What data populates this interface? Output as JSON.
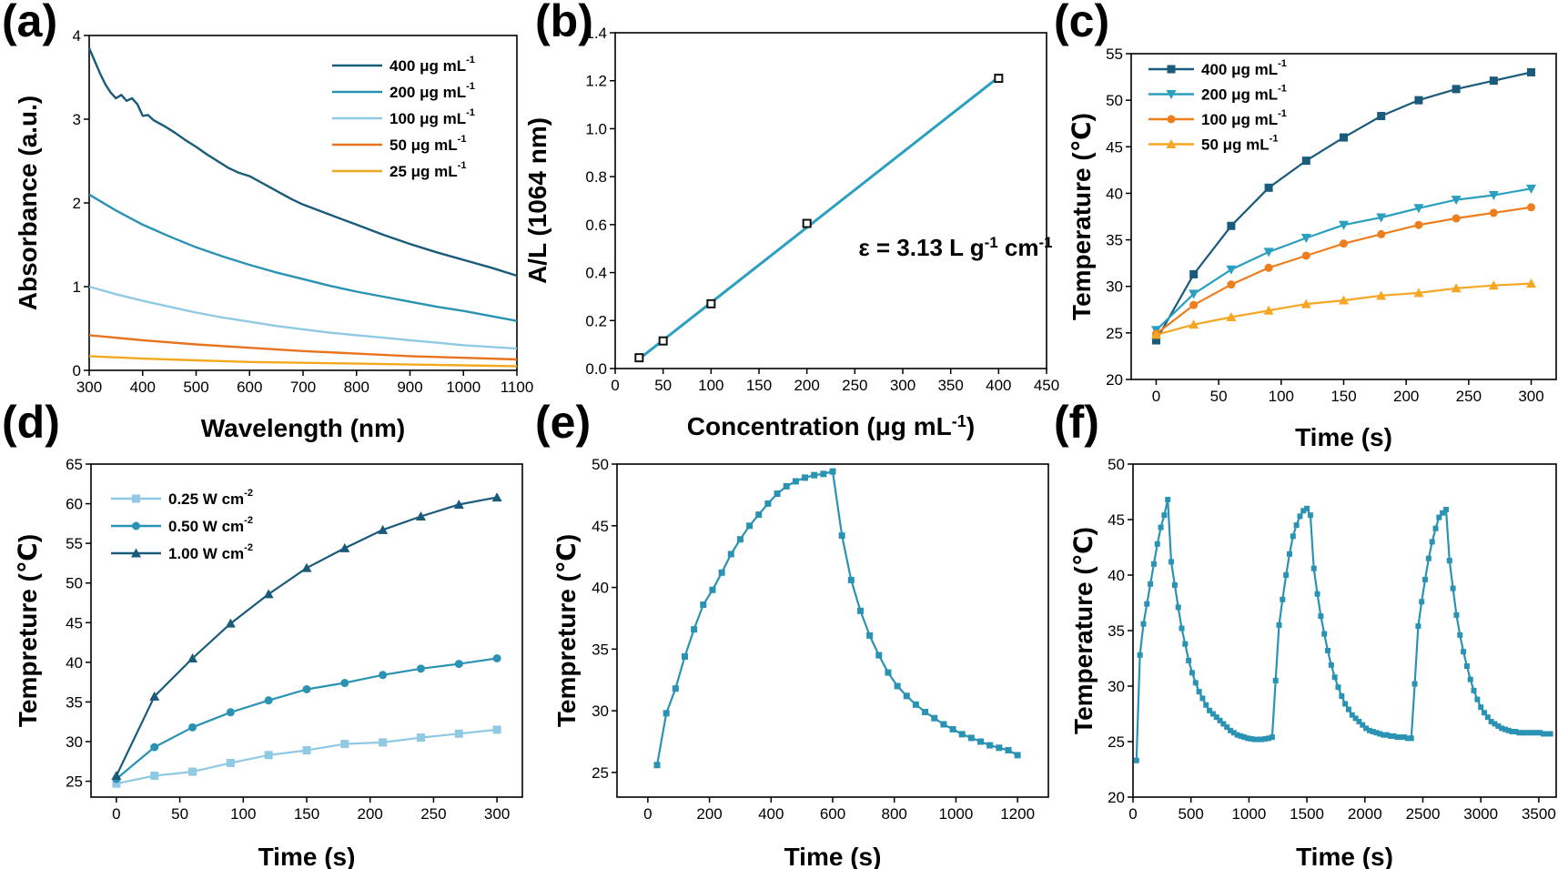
{
  "chart_data": [
    {
      "id": "a",
      "panel_label": "(a)",
      "type": "line",
      "xlabel": "Wavelength (nm)",
      "ylabel": "Absorbance (a.u.)",
      "xlim": [
        300,
        1100
      ],
      "ylim": [
        0,
        4
      ],
      "xticks": [
        300,
        400,
        500,
        600,
        700,
        800,
        900,
        1000,
        1100
      ],
      "yticks": [
        0,
        1,
        2,
        3,
        4
      ],
      "grid": false,
      "legend_position": "top-right",
      "series": [
        {
          "name": "400 μg mL-1",
          "color": "#1a5a7a",
          "x": [
            300,
            310,
            320,
            330,
            340,
            350,
            360,
            370,
            380,
            390,
            400,
            410,
            420,
            440,
            460,
            480,
            500,
            520,
            540,
            560,
            580,
            600,
            620,
            640,
            660,
            680,
            700,
            750,
            800,
            850,
            900,
            950,
            1000,
            1050,
            1100
          ],
          "y": [
            3.85,
            3.7,
            3.55,
            3.42,
            3.32,
            3.25,
            3.29,
            3.22,
            3.25,
            3.18,
            3.04,
            3.05,
            2.99,
            2.92,
            2.84,
            2.75,
            2.67,
            2.58,
            2.5,
            2.42,
            2.36,
            2.32,
            2.25,
            2.18,
            2.11,
            2.04,
            1.98,
            1.86,
            1.74,
            1.62,
            1.51,
            1.41,
            1.32,
            1.23,
            1.13
          ]
        },
        {
          "name": "200 μg mL-1",
          "color": "#2a93b3",
          "x": [
            300,
            350,
            400,
            450,
            500,
            550,
            600,
            650,
            700,
            750,
            800,
            850,
            900,
            950,
            1000,
            1050,
            1100
          ],
          "y": [
            2.1,
            1.91,
            1.74,
            1.6,
            1.47,
            1.36,
            1.26,
            1.17,
            1.09,
            1.01,
            0.94,
            0.88,
            0.82,
            0.76,
            0.71,
            0.65,
            0.59
          ]
        },
        {
          "name": "100 μg mL-1",
          "color": "#8fc9e3",
          "x": [
            300,
            350,
            400,
            450,
            500,
            550,
            600,
            650,
            700,
            750,
            800,
            850,
            900,
            950,
            1000,
            1050,
            1100
          ],
          "y": [
            1.0,
            0.91,
            0.83,
            0.76,
            0.69,
            0.63,
            0.58,
            0.53,
            0.49,
            0.45,
            0.42,
            0.39,
            0.36,
            0.33,
            0.3,
            0.28,
            0.26
          ]
        },
        {
          "name": "50 μg mL-1",
          "color": "#e8731f",
          "x": [
            300,
            400,
            500,
            600,
            700,
            800,
            900,
            1000,
            1100
          ],
          "y": [
            0.42,
            0.36,
            0.31,
            0.27,
            0.23,
            0.2,
            0.17,
            0.15,
            0.13
          ]
        },
        {
          "name": "25 μg mL-1",
          "color": "#f2a91f",
          "x": [
            300,
            400,
            500,
            600,
            700,
            800,
            900,
            1000,
            1100
          ],
          "y": [
            0.17,
            0.14,
            0.12,
            0.1,
            0.09,
            0.08,
            0.07,
            0.06,
            0.05
          ]
        }
      ]
    },
    {
      "id": "b",
      "panel_label": "(b)",
      "type": "scatter",
      "xlabel": "Concentration (μg mL-1)",
      "ylabel": "A/L (1064 nm)",
      "xlim": [
        0,
        450
      ],
      "ylim": [
        0,
        1.4
      ],
      "xticks": [
        0,
        50,
        100,
        150,
        200,
        250,
        300,
        350,
        400,
        450
      ],
      "yticks": [
        0.0,
        0.2,
        0.4,
        0.6,
        0.8,
        1.0,
        1.2,
        1.4
      ],
      "grid": false,
      "annotation": "ε = 3.13 L g-1 cm-1",
      "points": {
        "x": [
          25,
          50,
          100,
          200,
          400
        ],
        "y": [
          0.045,
          0.115,
          0.27,
          0.605,
          1.21
        ]
      },
      "fit_line": {
        "color": "#2a9fc0",
        "x": [
          25,
          400
        ],
        "y": [
          0.04,
          1.215
        ]
      }
    },
    {
      "id": "c",
      "panel_label": "(c)",
      "type": "line",
      "xlabel": "Time (s)",
      "ylabel": "Temperature (℃)",
      "xlim": [
        -20,
        320
      ],
      "ylim": [
        20,
        55
      ],
      "xticks": [
        0,
        50,
        100,
        150,
        200,
        250,
        300
      ],
      "yticks": [
        20,
        25,
        30,
        35,
        40,
        45,
        50,
        55
      ],
      "grid": false,
      "legend_position": "top-left",
      "x": [
        0,
        30,
        60,
        90,
        120,
        150,
        180,
        210,
        240,
        270,
        300
      ],
      "series": [
        {
          "name": "400 μg mL-1",
          "color": "#1a5a7a",
          "marker": "square",
          "values": [
            24.2,
            31.3,
            36.5,
            40.6,
            43.5,
            46.0,
            48.3,
            50.0,
            51.2,
            52.1,
            53.0
          ]
        },
        {
          "name": "200 μg mL-1",
          "color": "#2a9fc0",
          "marker": "triangle-down",
          "values": [
            25.3,
            29.2,
            31.8,
            33.7,
            35.2,
            36.6,
            37.4,
            38.4,
            39.3,
            39.8,
            40.5
          ]
        },
        {
          "name": "100 μg mL-1",
          "color": "#ee7d1e",
          "marker": "circle",
          "values": [
            24.9,
            28.0,
            30.2,
            32.0,
            33.3,
            34.6,
            35.6,
            36.6,
            37.3,
            37.9,
            38.5
          ]
        },
        {
          "name": "50 μg mL-1",
          "color": "#f5a623",
          "marker": "triangle-up",
          "values": [
            24.8,
            25.9,
            26.7,
            27.4,
            28.1,
            28.5,
            29.0,
            29.3,
            29.8,
            30.1,
            30.3
          ]
        }
      ]
    },
    {
      "id": "d",
      "panel_label": "(d)",
      "type": "line",
      "xlabel": "Time (s)",
      "ylabel": "Tempreture (℃)",
      "xlim": [
        -20,
        320
      ],
      "ylim": [
        23,
        65
      ],
      "xticks": [
        0,
        50,
        100,
        150,
        200,
        250,
        300
      ],
      "yticks": [
        25,
        30,
        35,
        40,
        45,
        50,
        55,
        60,
        65
      ],
      "grid": false,
      "legend_position": "top-left",
      "x": [
        0,
        30,
        60,
        90,
        120,
        150,
        180,
        210,
        240,
        270,
        300
      ],
      "series": [
        {
          "name": "0.25 W cm-2",
          "color": "#8fc9e3",
          "marker": "square",
          "values": [
            24.7,
            25.7,
            26.2,
            27.3,
            28.3,
            28.9,
            29.7,
            29.9,
            30.5,
            31.0,
            31.5
          ]
        },
        {
          "name": "0.50 W cm-2",
          "color": "#2a93b3",
          "marker": "circle",
          "values": [
            25.3,
            29.3,
            31.8,
            33.7,
            35.2,
            36.6,
            37.4,
            38.4,
            39.2,
            39.8,
            40.5
          ]
        },
        {
          "name": "1.00 W cm-2",
          "color": "#1a5a7a",
          "marker": "triangle-up",
          "values": [
            25.7,
            35.7,
            40.5,
            44.9,
            48.6,
            51.9,
            54.4,
            56.7,
            58.4,
            59.9,
            60.8
          ]
        }
      ]
    },
    {
      "id": "e",
      "panel_label": "(e)",
      "type": "line",
      "xlabel": "Time (s)",
      "ylabel": "Tempreture (℃)",
      "xlim": [
        -100,
        1300
      ],
      "ylim": [
        23,
        50
      ],
      "xticks": [
        0,
        200,
        400,
        600,
        800,
        1000,
        1200
      ],
      "yticks": [
        25,
        30,
        35,
        40,
        45,
        50
      ],
      "grid": false,
      "series": [
        {
          "name": "",
          "color": "#2a93b3",
          "marker": "square",
          "x": [
            30,
            60,
            90,
            120,
            150,
            180,
            210,
            240,
            270,
            300,
            330,
            360,
            390,
            420,
            450,
            480,
            510,
            540,
            570,
            600,
            630,
            660,
            690,
            720,
            750,
            780,
            810,
            840,
            870,
            900,
            930,
            960,
            990,
            1020,
            1050,
            1080,
            1110,
            1140,
            1170,
            1200
          ],
          "y": [
            25.6,
            29.8,
            31.8,
            34.4,
            36.6,
            38.6,
            39.8,
            41.2,
            42.7,
            43.9,
            45.0,
            45.9,
            46.8,
            47.6,
            48.2,
            48.6,
            48.9,
            49.1,
            49.2,
            49.4,
            44.2,
            40.6,
            38.1,
            36.1,
            34.5,
            33.1,
            32.0,
            31.2,
            30.5,
            29.9,
            29.4,
            28.9,
            28.5,
            28.1,
            27.8,
            27.5,
            27.2,
            27.0,
            26.8,
            26.4
          ]
        }
      ]
    },
    {
      "id": "f",
      "panel_label": "(f)",
      "type": "line",
      "xlabel": "Time (s)",
      "ylabel": "Temperature (℃)",
      "xlim": [
        0,
        3650
      ],
      "ylim": [
        20,
        50
      ],
      "xticks": [
        0,
        500,
        1000,
        1500,
        2000,
        2500,
        3000,
        3500
      ],
      "yticks": [
        20,
        25,
        30,
        35,
        40,
        45,
        50
      ],
      "grid": false,
      "series": [
        {
          "name": "",
          "color": "#2a93b3",
          "marker": "square",
          "x": [
            30,
            60,
            90,
            120,
            150,
            180,
            210,
            240,
            270,
            300,
            330,
            360,
            390,
            420,
            450,
            480,
            510,
            540,
            570,
            600,
            630,
            660,
            690,
            720,
            750,
            780,
            810,
            840,
            870,
            900,
            930,
            960,
            990,
            1020,
            1050,
            1080,
            1110,
            1140,
            1170,
            1200,
            1230,
            1260,
            1290,
            1320,
            1350,
            1380,
            1410,
            1440,
            1470,
            1500,
            1530,
            1560,
            1590,
            1620,
            1650,
            1680,
            1710,
            1740,
            1770,
            1800,
            1830,
            1860,
            1890,
            1920,
            1950,
            1980,
            2010,
            2040,
            2070,
            2100,
            2130,
            2160,
            2190,
            2220,
            2250,
            2280,
            2310,
            2340,
            2370,
            2400,
            2430,
            2460,
            2490,
            2520,
            2550,
            2580,
            2610,
            2640,
            2670,
            2700,
            2730,
            2760,
            2790,
            2820,
            2850,
            2880,
            2910,
            2940,
            2970,
            3000,
            3030,
            3060,
            3090,
            3120,
            3150,
            3180,
            3210,
            3240,
            3270,
            3300,
            3330,
            3360,
            3390,
            3420,
            3450,
            3480,
            3510,
            3540,
            3570,
            3600
          ],
          "y": [
            23.3,
            32.8,
            35.6,
            37.4,
            39.2,
            41.0,
            42.8,
            44.3,
            45.4,
            46.8,
            41.2,
            39.1,
            37.1,
            35.2,
            33.8,
            32.3,
            31.2,
            30.3,
            29.5,
            28.9,
            28.3,
            27.8,
            27.5,
            27.2,
            26.9,
            26.6,
            26.3,
            26.0,
            25.8,
            25.6,
            25.5,
            25.4,
            25.3,
            25.25,
            25.2,
            25.2,
            25.2,
            25.25,
            25.3,
            25.4,
            30.5,
            35.5,
            37.8,
            40.0,
            41.9,
            43.5,
            44.5,
            45.3,
            45.8,
            46.0,
            45.4,
            40.6,
            38.3,
            36.3,
            34.7,
            33.2,
            31.9,
            30.8,
            29.9,
            29.1,
            28.4,
            27.9,
            27.4,
            27.1,
            26.8,
            26.5,
            26.2,
            26.0,
            25.9,
            25.8,
            25.7,
            25.6,
            25.6,
            25.5,
            25.5,
            25.4,
            25.4,
            25.4,
            25.3,
            25.3,
            30.2,
            35.4,
            37.6,
            39.6,
            41.5,
            43.0,
            44.2,
            45.2,
            45.6,
            45.9,
            41.3,
            38.8,
            36.4,
            34.6,
            33.1,
            31.8,
            30.6,
            29.6,
            28.8,
            28.1,
            27.6,
            27.2,
            26.8,
            26.6,
            26.4,
            26.2,
            26.1,
            26.0,
            25.9,
            25.9,
            25.8,
            25.8,
            25.8,
            25.8,
            25.8,
            25.8,
            25.8,
            25.7,
            25.7,
            25.7
          ]
        }
      ]
    }
  ]
}
